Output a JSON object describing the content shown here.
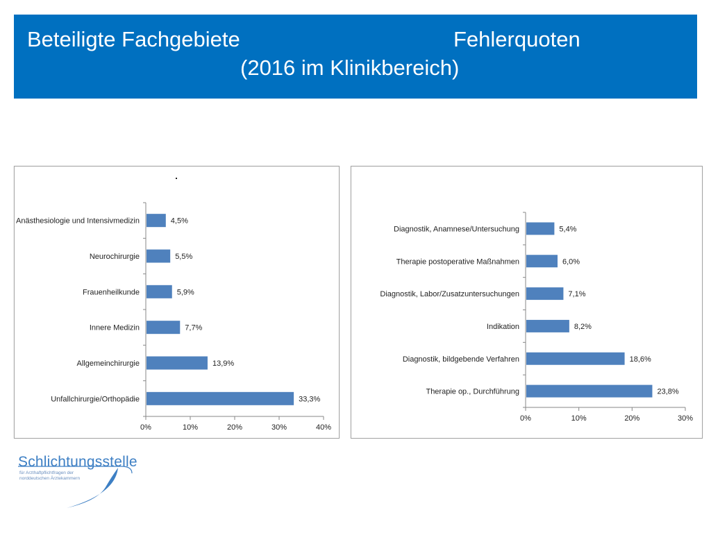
{
  "header": {
    "title_left": "Beteiligte Fachgebiete",
    "title_right": "Fehlerquoten",
    "subtitle": "(2016 im Klinikbereich)",
    "bg_color": "#0070c0"
  },
  "chart_data": [
    {
      "type": "bar",
      "orientation": "horizontal",
      "categories": [
        "Unfallchirurgie/Orthopädie",
        "Allgemeinchirurgie",
        "Innere Medizin",
        "Frauenheilkunde",
        "Neurochirurgie",
        "Anästhesiologie und Intensivmedizin"
      ],
      "values": [
        33.3,
        13.9,
        7.7,
        5.9,
        5.5,
        4.5
      ],
      "data_labels": [
        "33,3%",
        "13,9%",
        "7,7%",
        "5,9%",
        "5,5%",
        "4,5%"
      ],
      "x_ticks": [
        "0%",
        "10%",
        "20%",
        "30%",
        "40%"
      ],
      "xlim": [
        0,
        40
      ],
      "grid": false,
      "legend": "none",
      "bar_color": "#4f81bd"
    },
    {
      "type": "bar",
      "orientation": "horizontal",
      "categories": [
        "Therapie op., Durchführung",
        "Diagnostik, bildgebende Verfahren",
        "Indikation",
        "Diagnostik, Labor/Zusatzuntersuchungen",
        "Therapie postoperative Maßnahmen",
        "Diagnostik, Anamnese/Untersuchung"
      ],
      "values": [
        23.8,
        18.6,
        8.2,
        7.1,
        6.0,
        5.4
      ],
      "data_labels": [
        "23,8%",
        "18,6%",
        "8,2%",
        "7,1%",
        "6,0%",
        "5,4%"
      ],
      "x_ticks": [
        "0%",
        "10%",
        "20%",
        "30%"
      ],
      "xlim": [
        0,
        30
      ],
      "grid": false,
      "legend": "none",
      "bar_color": "#4f81bd"
    }
  ],
  "logo": {
    "name": "Schlichtungsstelle",
    "line1": "für Arzthaftpflichtfragen der",
    "line2": "norddeutschen Ärztekammern",
    "color": "#3d7fc4"
  }
}
